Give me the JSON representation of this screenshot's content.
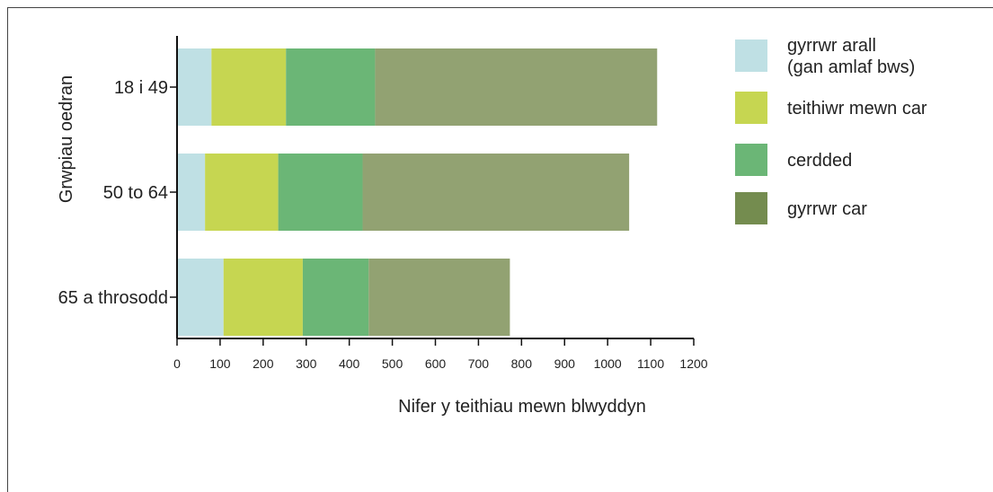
{
  "chart_data": {
    "type": "bar",
    "orientation": "horizontal",
    "stacked": true,
    "categories": [
      "18 i 49",
      "50 to 64",
      "65 a throsodd"
    ],
    "series": [
      {
        "name": "gyrrwr arall (gan amlaf bws)",
        "color": "#bfe0e4",
        "values": [
          80,
          65,
          108
        ]
      },
      {
        "name": "teithiwr mewn car",
        "color": "#c6d651",
        "values": [
          173,
          170,
          184
        ]
      },
      {
        "name": "cerdded",
        "color": "#6bb676",
        "values": [
          207,
          196,
          153
        ]
      },
      {
        "name": "gyrrwr car",
        "color": "#92a272",
        "values": [
          655,
          619,
          328
        ]
      }
    ],
    "legend": [
      {
        "lines": [
          "gyrrwr arall",
          "(gan amlaf bws)"
        ],
        "color": "#bfe0e4"
      },
      {
        "lines": [
          "teithiwr mewn car"
        ],
        "color": "#c6d651"
      },
      {
        "lines": [
          "cerdded"
        ],
        "color": "#6bb676"
      },
      {
        "lines": [
          "gyrrwr car"
        ],
        "color": "#748c4f"
      }
    ],
    "xlabel": "Nifer y teithiau mewn blwyddyn",
    "ylabel": "Grwpiau oedran",
    "xlim": [
      0,
      1200
    ],
    "xticks": [
      0,
      100,
      200,
      300,
      400,
      500,
      600,
      700,
      800,
      900,
      1000,
      1100,
      1200
    ],
    "grid": false,
    "legend_position": "right"
  }
}
